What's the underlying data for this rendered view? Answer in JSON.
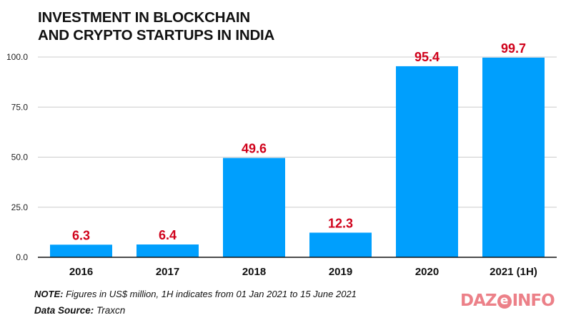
{
  "chart_data": {
    "type": "bar",
    "title": "INVESTMENT IN BLOCKCHAIN AND CRYPTO STARTUPS IN INDIA",
    "title_lines": [
      "INVESTMENT IN BLOCKCHAIN",
      "AND CRYPTO STARTUPS IN INDIA"
    ],
    "categories": [
      "2016",
      "2017",
      "2018",
      "2019",
      "2020",
      "2021 (1H)"
    ],
    "values": [
      6.3,
      6.4,
      49.6,
      12.3,
      95.4,
      99.7
    ],
    "data_labels": [
      "6.3",
      "6.4",
      "49.6",
      "12.3",
      "95.4",
      "99.7"
    ],
    "xlabel": "",
    "ylabel": "",
    "ylim": [
      0,
      100
    ],
    "yticks": [
      0,
      25,
      50,
      75,
      100
    ],
    "ytick_labels": [
      "0.0",
      "25.0",
      "50.0",
      "75.0",
      "100.0"
    ],
    "grid": true,
    "legend": "none",
    "colors": {
      "bar": "#009ffd",
      "data_label": "#d0021b",
      "grid": "#cccccc",
      "axis": "#111111"
    }
  },
  "footer": {
    "note_key": "NOTE:",
    "note_text": " Figures in US$ million, 1H indicates from 01 Jan 2021 to 15 June 2021",
    "source_key": "Data Source:",
    "source_value": " Traxcn"
  },
  "logo": {
    "pre": "DAZ",
    "e": "e",
    "post": "INFO",
    "color": "#ec8088"
  }
}
